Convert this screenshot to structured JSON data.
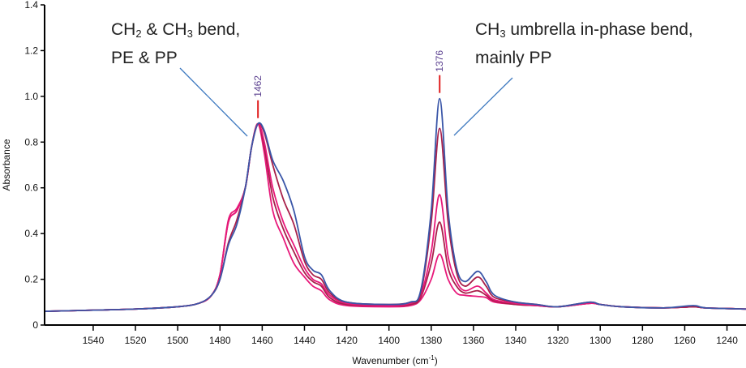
{
  "chart_data": {
    "type": "line",
    "title": "",
    "xlabel": "Wavenumber (cm",
    "xlabel_sup": "-1",
    "xlabel_end": ")",
    "ylabel": "Absorbance",
    "xlim": [
      1563,
      1231
    ],
    "x_reversed": true,
    "ylim": [
      0,
      1.4
    ],
    "grid": false,
    "xticks": [
      1540,
      1520,
      1500,
      1480,
      1460,
      1440,
      1420,
      1400,
      1380,
      1360,
      1340,
      1320,
      1300,
      1280,
      1260,
      1240
    ],
    "yticks": [
      0,
      0.2,
      0.4,
      0.6,
      0.8,
      1.0,
      1.2,
      1.4
    ],
    "ytick_labels": [
      "0",
      "0.2",
      "0.4",
      "0.6",
      "0.8",
      "1.0",
      "1.2",
      "1.4"
    ],
    "x": [
      1563,
      1540,
      1520,
      1500,
      1490,
      1484,
      1480,
      1476,
      1472,
      1468,
      1465,
      1462,
      1459,
      1455,
      1450,
      1445,
      1440,
      1436,
      1432,
      1428,
      1420,
      1400,
      1390,
      1385,
      1380,
      1376,
      1372,
      1368,
      1364,
      1358,
      1354,
      1350,
      1340,
      1330,
      1320,
      1305,
      1300,
      1290,
      1270,
      1256,
      1250,
      1231
    ],
    "series": [
      {
        "color": "#e8187a",
        "values": [
          0.06,
          0.065,
          0.07,
          0.08,
          0.095,
          0.13,
          0.22,
          0.46,
          0.51,
          0.6,
          0.78,
          0.88,
          0.75,
          0.5,
          0.38,
          0.27,
          0.21,
          0.17,
          0.15,
          0.11,
          0.085,
          0.08,
          0.085,
          0.11,
          0.2,
          0.31,
          0.2,
          0.14,
          0.13,
          0.125,
          0.12,
          0.1,
          0.09,
          0.085,
          0.08,
          0.095,
          0.09,
          0.08,
          0.075,
          0.08,
          0.075,
          0.07
        ]
      },
      {
        "color": "#a8204a",
        "values": [
          0.06,
          0.065,
          0.07,
          0.08,
          0.095,
          0.13,
          0.22,
          0.45,
          0.5,
          0.6,
          0.78,
          0.88,
          0.78,
          0.56,
          0.42,
          0.32,
          0.23,
          0.19,
          0.17,
          0.12,
          0.09,
          0.085,
          0.09,
          0.12,
          0.27,
          0.45,
          0.25,
          0.17,
          0.14,
          0.15,
          0.13,
          0.105,
          0.09,
          0.085,
          0.08,
          0.095,
          0.09,
          0.08,
          0.075,
          0.08,
          0.075,
          0.07
        ]
      },
      {
        "color": "#e8187a",
        "values": [
          0.06,
          0.065,
          0.07,
          0.08,
          0.095,
          0.13,
          0.22,
          0.45,
          0.5,
          0.6,
          0.78,
          0.88,
          0.8,
          0.6,
          0.45,
          0.35,
          0.25,
          0.2,
          0.18,
          0.13,
          0.095,
          0.085,
          0.095,
          0.13,
          0.32,
          0.57,
          0.3,
          0.19,
          0.15,
          0.17,
          0.14,
          0.11,
          0.095,
          0.085,
          0.08,
          0.095,
          0.09,
          0.08,
          0.075,
          0.08,
          0.075,
          0.07
        ]
      },
      {
        "color": "#a8204a",
        "values": [
          0.06,
          0.065,
          0.07,
          0.08,
          0.095,
          0.13,
          0.2,
          0.36,
          0.46,
          0.6,
          0.78,
          0.88,
          0.84,
          0.7,
          0.55,
          0.44,
          0.28,
          0.22,
          0.2,
          0.14,
          0.1,
          0.09,
          0.1,
          0.14,
          0.45,
          0.86,
          0.45,
          0.23,
          0.17,
          0.21,
          0.17,
          0.12,
          0.1,
          0.09,
          0.08,
          0.1,
          0.09,
          0.08,
          0.075,
          0.08,
          0.075,
          0.07
        ]
      },
      {
        "color": "#3a56a8",
        "values": [
          0.06,
          0.065,
          0.07,
          0.08,
          0.095,
          0.13,
          0.2,
          0.35,
          0.44,
          0.6,
          0.78,
          0.88,
          0.85,
          0.72,
          0.63,
          0.5,
          0.3,
          0.24,
          0.22,
          0.15,
          0.1,
          0.09,
          0.1,
          0.15,
          0.5,
          0.99,
          0.5,
          0.25,
          0.19,
          0.235,
          0.19,
          0.13,
          0.1,
          0.09,
          0.08,
          0.1,
          0.09,
          0.08,
          0.075,
          0.085,
          0.075,
          0.07
        ]
      }
    ],
    "peak_markers": [
      {
        "x": 1462,
        "label": "1462",
        "y": 0.88
      },
      {
        "x": 1376,
        "label": "1376",
        "y": 0.99
      }
    ],
    "annotations": [
      {
        "line1": [
          "CH",
          "2",
          " & CH",
          "3",
          " bend,"
        ],
        "line2": "PE & PP",
        "points_to": 1462
      },
      {
        "line1": [
          "CH",
          "3",
          " umbrella in-phase bend,"
        ],
        "line2": "mainly PP",
        "points_to": 1376
      }
    ],
    "colors": {
      "marker": "#e02020",
      "peak_label": "#5a3f8f",
      "annotation_line": "#3f7ac0"
    }
  }
}
